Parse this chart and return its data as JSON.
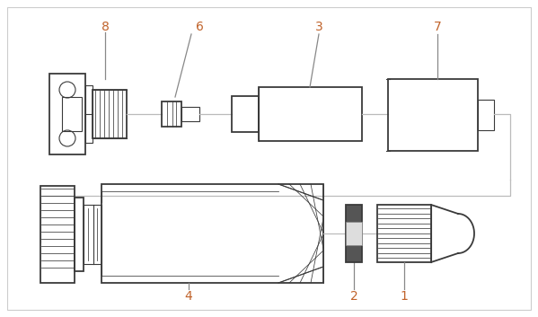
{
  "fig_width": 5.99,
  "fig_height": 3.53,
  "dpi": 100,
  "bg_color": "#ffffff",
  "line_color": "#3a3a3a",
  "label_color": "#c0622a",
  "leader_color": "#888888",
  "label_fontsize": 10,
  "connector_color": "#bbbbbb"
}
